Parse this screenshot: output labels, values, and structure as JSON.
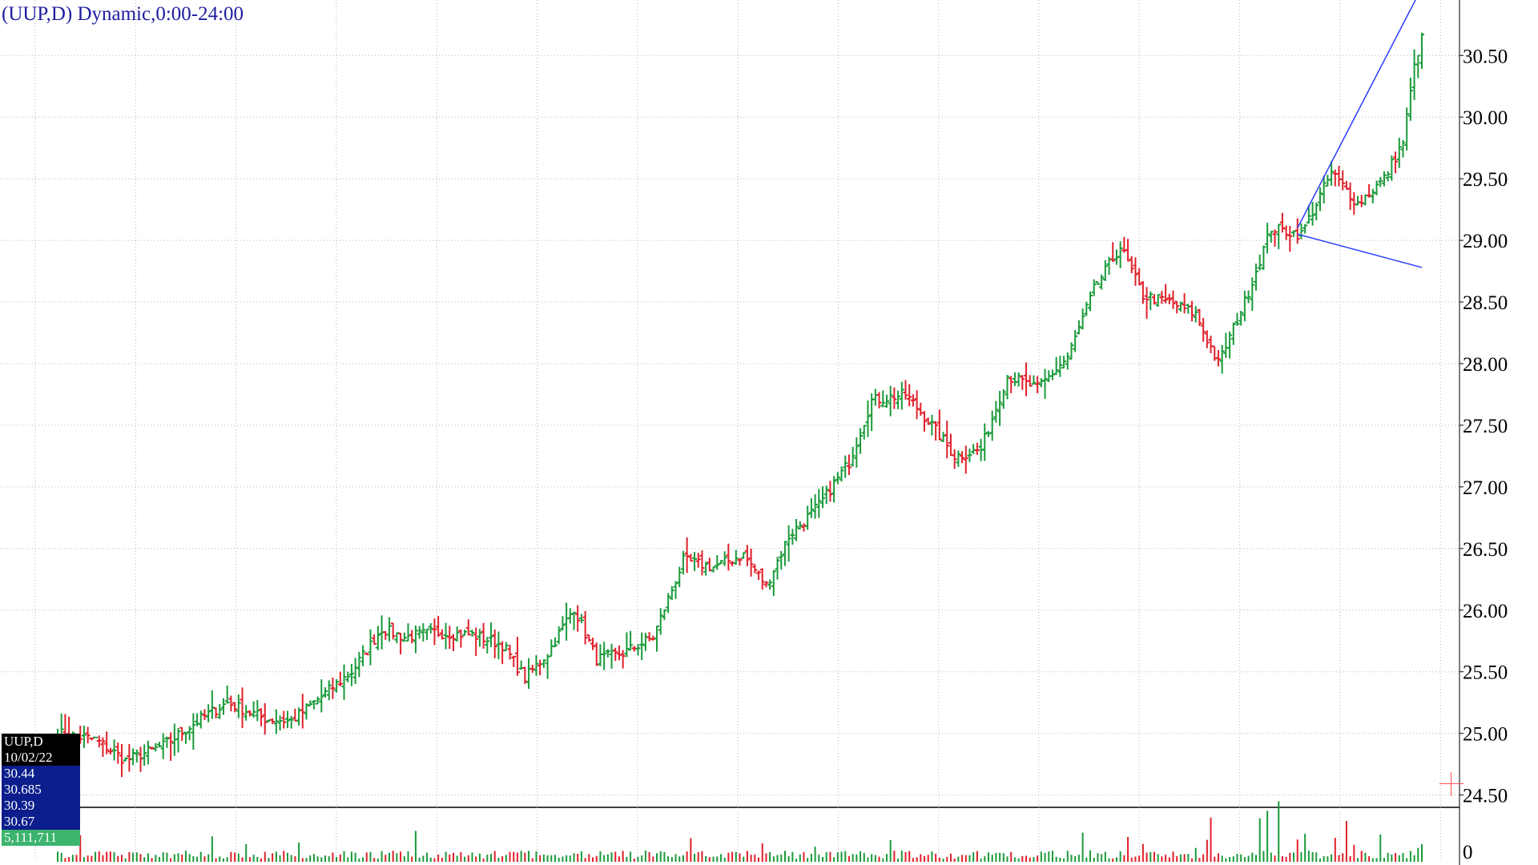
{
  "header": {
    "title": "(UUP,D) Dynamic,0:00-24:00"
  },
  "data_box": {
    "symbol": "UUP,D",
    "date": "10/02/22",
    "open": "30.44",
    "high": "30.685",
    "low": "30.39",
    "close": "30.67",
    "volume": "5,111,711"
  },
  "colors": {
    "up": "#1a9a3a",
    "down": "#e0202a",
    "trendline": "#2a3cff",
    "grid": "#b4b4b4",
    "title": "#1e1ea0",
    "crosshair": "#ff5050"
  },
  "chart_data": {
    "type": "ohlc",
    "symbol": "UUP",
    "interval": "D",
    "y_axis": {
      "ylim": [
        24.4,
        30.95
      ],
      "ticks": [
        "24.50",
        "25.00",
        "25.50",
        "26.00",
        "26.50",
        "27.00",
        "27.50",
        "28.00",
        "28.50",
        "29.00",
        "29.50",
        "30.00",
        "30.50"
      ],
      "side": "right"
    },
    "volume_axis": {
      "ticks": [
        "0"
      ]
    },
    "grid": true,
    "close_anchors": [
      [
        0,
        25.0
      ],
      [
        10,
        24.95
      ],
      [
        18,
        24.78
      ],
      [
        28,
        24.9
      ],
      [
        38,
        25.12
      ],
      [
        45,
        25.25
      ],
      [
        55,
        25.12
      ],
      [
        62,
        25.1
      ],
      [
        70,
        25.3
      ],
      [
        78,
        25.5
      ],
      [
        86,
        25.85
      ],
      [
        92,
        25.78
      ],
      [
        100,
        25.82
      ],
      [
        110,
        25.8
      ],
      [
        118,
        25.72
      ],
      [
        124,
        25.45
      ],
      [
        130,
        25.65
      ],
      [
        137,
        26.02
      ],
      [
        143,
        25.6
      ],
      [
        150,
        25.65
      ],
      [
        158,
        25.78
      ],
      [
        166,
        26.4
      ],
      [
        174,
        26.35
      ],
      [
        182,
        26.45
      ],
      [
        188,
        26.2
      ],
      [
        194,
        26.6
      ],
      [
        202,
        26.85
      ],
      [
        210,
        27.2
      ],
      [
        216,
        27.7
      ],
      [
        225,
        27.75
      ],
      [
        232,
        27.5
      ],
      [
        238,
        27.25
      ],
      [
        245,
        27.3
      ],
      [
        252,
        27.9
      ],
      [
        260,
        27.8
      ],
      [
        268,
        28.05
      ],
      [
        275,
        28.6
      ],
      [
        282,
        28.95
      ],
      [
        288,
        28.55
      ],
      [
        295,
        28.5
      ],
      [
        302,
        28.4
      ],
      [
        308,
        28.0
      ],
      [
        315,
        28.5
      ],
      [
        322,
        29.1
      ],
      [
        330,
        29.05
      ],
      [
        338,
        29.55
      ],
      [
        345,
        29.3
      ],
      [
        352,
        29.5
      ],
      [
        357,
        29.8
      ],
      [
        360,
        30.4
      ],
      [
        362,
        30.67
      ]
    ],
    "last_bar": {
      "date": "10/02/22",
      "open": 30.44,
      "high": 30.685,
      "low": 30.39,
      "close": 30.67,
      "volume": 5111711
    },
    "trendlines": [
      {
        "from": [
          329,
          29.1
        ],
        "to": [
          362,
          31.05
        ],
        "color": "#2a3cff"
      },
      {
        "from": [
          329,
          29.05
        ],
        "to": [
          362,
          28.78
        ],
        "color": "#2a3cff"
      }
    ]
  }
}
